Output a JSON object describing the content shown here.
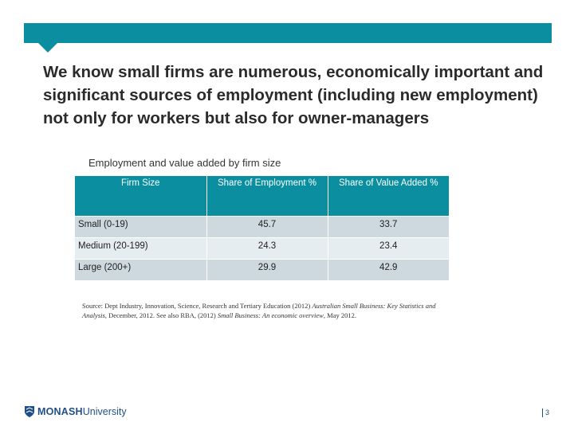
{
  "slide": {
    "title": "We know small firms are numerous, economically important and significant sources of employment (including new employment) not only for workers but also for owner-managers",
    "subtitle": "Employment and value added by firm size"
  },
  "table": {
    "headers": [
      "Firm Size",
      "Share of Employment %",
      "Share of Value Added %"
    ],
    "rows": [
      {
        "firm_size": "Small (0-19)",
        "employment": "45.7",
        "value_added": "33.7"
      },
      {
        "firm_size": "Medium (20-199)",
        "employment": "24.3",
        "value_added": "23.4"
      },
      {
        "firm_size": "Large (200+)",
        "employment": "29.9",
        "value_added": "42.9"
      }
    ]
  },
  "source": {
    "part1": "Source: Dept Industry, Innovation, Science, Research and Tertiary Education (2012) ",
    "italic1": "Australian Small Business: Key Statistics and Analysis",
    "part2": ", December, 2012. See also RBA, (2012) ",
    "italic2": "Small Business: An economic overview",
    "part3": ", May 2012."
  },
  "footer": {
    "logo_bold": "MONASH",
    "logo_light": "University",
    "page_number": "3"
  },
  "colors": {
    "accent": "#0b8fa0",
    "row_dark": "#cdd9de",
    "row_light": "#e6edf0",
    "logo_blue": "#1f4f8a"
  }
}
